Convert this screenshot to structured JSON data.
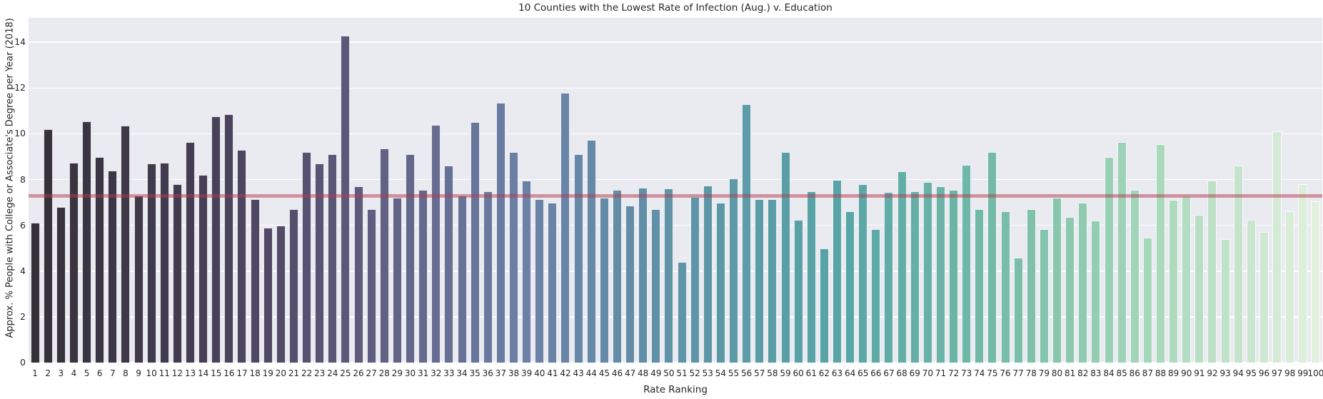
{
  "chart_data": {
    "type": "bar",
    "title": "10 Counties with the Lowest Rate of Infection (Aug.) v. Education",
    "xlabel": "Rate Ranking",
    "ylabel": "Approx. % People with College or Associate's Degree per Year (2018)",
    "categories": [
      1,
      2,
      3,
      4,
      5,
      6,
      7,
      8,
      9,
      10,
      11,
      12,
      13,
      14,
      15,
      16,
      17,
      18,
      19,
      20,
      21,
      22,
      23,
      24,
      25,
      26,
      27,
      28,
      29,
      30,
      31,
      32,
      33,
      34,
      35,
      36,
      37,
      38,
      39,
      40,
      41,
      42,
      43,
      44,
      45,
      46,
      47,
      48,
      49,
      50,
      51,
      52,
      53,
      54,
      55,
      56,
      57,
      58,
      59,
      60,
      61,
      62,
      63,
      64,
      65,
      66,
      67,
      68,
      69,
      70,
      71,
      72,
      73,
      74,
      75,
      76,
      77,
      78,
      79,
      80,
      81,
      82,
      83,
      84,
      85,
      86,
      87,
      88,
      89,
      90,
      91,
      92,
      93,
      94,
      95,
      96,
      97,
      98,
      99,
      100
    ],
    "values": [
      6.1,
      10.2,
      6.8,
      8.75,
      10.55,
      9.0,
      8.4,
      10.35,
      7.3,
      8.7,
      8.75,
      7.8,
      9.65,
      8.2,
      10.75,
      10.85,
      9.3,
      7.15,
      5.9,
      6.0,
      6.7,
      9.2,
      8.7,
      9.1,
      14.3,
      7.7,
      6.7,
      9.35,
      7.2,
      9.1,
      7.55,
      10.4,
      8.6,
      7.3,
      10.5,
      7.5,
      11.35,
      9.2,
      7.95,
      7.15,
      7.0,
      11.8,
      9.1,
      9.75,
      7.2,
      7.55,
      6.85,
      7.65,
      6.7,
      7.6,
      4.4,
      7.25,
      7.75,
      7.0,
      8.05,
      11.3,
      7.15,
      7.15,
      9.2,
      6.25,
      7.5,
      5.0,
      8.0,
      6.6,
      7.8,
      5.85,
      7.45,
      8.35,
      7.5,
      7.9,
      7.7,
      7.55,
      8.65,
      6.7,
      9.2,
      6.6,
      4.6,
      6.7,
      5.85,
      7.2,
      6.35,
      7.0,
      6.2,
      9.0,
      9.65,
      7.55,
      5.45,
      9.55,
      7.1,
      7.3,
      6.45,
      7.95,
      5.4,
      8.6,
      6.25,
      5.7,
      10.1,
      6.6,
      7.8,
      7.05
    ],
    "ylim": [
      0,
      15.07
    ],
    "yticks": [
      0,
      2,
      4,
      6,
      8,
      10,
      12,
      14
    ],
    "grid": true,
    "legend": "none",
    "reference_line": {
      "value": 7.3,
      "color": "rgba(180, 60, 78, 0.5)"
    },
    "colors": {
      "figure_background": "#ffffff",
      "axes_background": "#eaeaf1",
      "gridline": "#ffffff",
      "tick_label": "#262626",
      "bar_palette_stops": [
        [
          0.0,
          "#353139"
        ],
        [
          0.13,
          "#453e55"
        ],
        [
          0.25,
          "#5e5a7c"
        ],
        [
          0.38,
          "#6c80a6"
        ],
        [
          0.5,
          "#5f93a8"
        ],
        [
          0.63,
          "#58a5a6"
        ],
        [
          0.75,
          "#74bba6"
        ],
        [
          0.875,
          "#a8d8bb"
        ],
        [
          1.0,
          "#e2f0de"
        ]
      ]
    }
  }
}
